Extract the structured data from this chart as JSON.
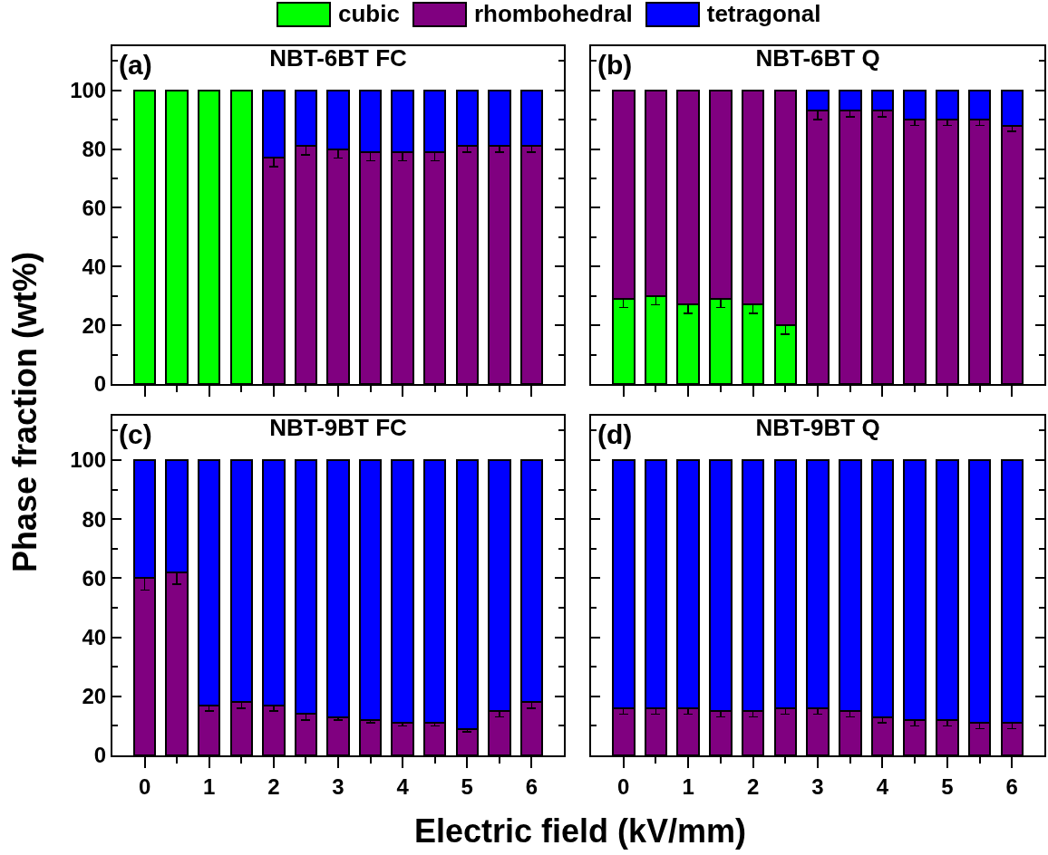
{
  "chart_data": [
    {
      "type": "bar",
      "title": "NBT-6BT FC",
      "ylabel": "Phase fraction (wt%)",
      "annotations": [
        "(a)"
      ],
      "stacked": true,
      "legend": "top",
      "tick_labels": "y",
      "x": [
        0,
        0.5,
        1,
        1.5,
        2,
        2.5,
        3,
        3.5,
        4,
        4.5,
        5,
        5.5,
        6
      ],
      "xlim": [
        -0.5,
        6.5
      ],
      "xticks": [
        0,
        {
          "value": 0.5,
          "label": null
        },
        1,
        {
          "value": 1.5,
          "label": null
        },
        2,
        {
          "value": 2.5,
          "label": null
        },
        3,
        {
          "value": 3.5,
          "label": null
        },
        4,
        {
          "value": 4.5,
          "label": null
        },
        5,
        {
          "value": 5.5,
          "label": null
        },
        6
      ],
      "ylim": [
        0,
        115
      ],
      "yticks": [
        0,
        {
          "value": 10,
          "label": null
        },
        20,
        {
          "value": 30,
          "label": null
        },
        40,
        {
          "value": 50,
          "label": null
        },
        60,
        {
          "value": 70,
          "label": null
        },
        80,
        {
          "value": 90,
          "label": null
        },
        100,
        {
          "value": 110,
          "label": null
        }
      ],
      "series": [
        {
          "name": "cubic",
          "color": "#00ff00",
          "values": [
            100,
            100,
            100,
            100,
            null,
            null,
            null,
            null,
            null,
            null,
            null,
            null,
            null
          ]
        },
        {
          "name": "rhombohedral",
          "color": "#800080",
          "values": [
            null,
            null,
            null,
            null,
            77,
            81,
            80,
            79,
            79,
            79,
            81,
            81,
            81
          ],
          "errors": [
            null,
            null,
            null,
            null,
            3,
            3,
            3,
            3,
            3,
            3,
            2,
            2,
            2
          ]
        },
        {
          "name": "tetragonal",
          "color": "#0000ff",
          "values": [
            null,
            null,
            null,
            null,
            23,
            19,
            20,
            21,
            21,
            21,
            19,
            19,
            19
          ]
        }
      ]
    },
    {
      "type": "bar",
      "title": "NBT-6BT Q",
      "annotations": [
        "(b)"
      ],
      "stacked": true,
      "tick_labels": false,
      "x": [
        0,
        0.5,
        1,
        1.5,
        2,
        2.5,
        3,
        3.5,
        4,
        4.5,
        5,
        5.5,
        6
      ],
      "xlim": [
        -0.5,
        6.5
      ],
      "xticks": [
        0,
        {
          "value": 0.5,
          "label": null
        },
        1,
        {
          "value": 1.5,
          "label": null
        },
        2,
        {
          "value": 2.5,
          "label": null
        },
        3,
        {
          "value": 3.5,
          "label": null
        },
        4,
        {
          "value": 4.5,
          "label": null
        },
        5,
        {
          "value": 5.5,
          "label": null
        },
        6
      ],
      "ylim": [
        0,
        115
      ],
      "yticks": [
        0,
        {
          "value": 10,
          "label": null
        },
        20,
        {
          "value": 30,
          "label": null
        },
        40,
        {
          "value": 50,
          "label": null
        },
        60,
        {
          "value": 70,
          "label": null
        },
        80,
        {
          "value": 90,
          "label": null
        },
        100,
        {
          "value": 110,
          "label": null
        }
      ],
      "series": [
        {
          "color": "#00ff00",
          "values": [
            29,
            30,
            27,
            29,
            27,
            20,
            null,
            null,
            null,
            null,
            null,
            null,
            null
          ],
          "errors": [
            3,
            3,
            3,
            3,
            3,
            3,
            null,
            null,
            null,
            null,
            null,
            null,
            null
          ]
        },
        {
          "color": "#800080",
          "values": [
            71,
            70,
            73,
            71,
            73,
            80,
            93,
            93,
            93,
            90,
            90,
            90,
            88
          ],
          "errors": [
            null,
            null,
            null,
            null,
            null,
            null,
            3,
            2,
            2,
            2,
            2,
            2,
            2
          ]
        },
        {
          "color": "#0000ff",
          "values": [
            null,
            null,
            null,
            null,
            null,
            null,
            7,
            7,
            7,
            10,
            10,
            10,
            12
          ]
        }
      ]
    },
    {
      "type": "bar",
      "title": "NBT-9BT FC",
      "xlabel": "Electric field (kV/mm)",
      "annotations": [
        "(c)"
      ],
      "stacked": true,
      "x": [
        0,
        0.5,
        1,
        1.5,
        2,
        2.5,
        3,
        3.5,
        4,
        4.5,
        5,
        5.5,
        6
      ],
      "xlim": [
        -0.5,
        6.5
      ],
      "xticks": [
        0,
        {
          "value": 0.5,
          "label": null
        },
        1,
        {
          "value": 1.5,
          "label": null
        },
        2,
        {
          "value": 2.5,
          "label": null
        },
        3,
        {
          "value": 3.5,
          "label": null
        },
        4,
        {
          "value": 4.5,
          "label": null
        },
        5,
        {
          "value": 5.5,
          "label": null
        },
        6
      ],
      "ylim": [
        0,
        115
      ],
      "yticks": [
        0,
        {
          "value": 10,
          "label": null
        },
        20,
        {
          "value": 30,
          "label": null
        },
        40,
        {
          "value": 50,
          "label": null
        },
        60,
        {
          "value": 70,
          "label": null
        },
        80,
        {
          "value": 90,
          "label": null
        },
        100,
        {
          "value": 110,
          "label": null
        }
      ],
      "series": [
        {
          "color": "#800080",
          "values": [
            60,
            62,
            17,
            18,
            17,
            14,
            13,
            12,
            11,
            11,
            9,
            15,
            18
          ],
          "errors": [
            4,
            4,
            2,
            2,
            2,
            2,
            1,
            1,
            1,
            1,
            1,
            2,
            2
          ]
        },
        {
          "color": "#0000ff",
          "values": [
            40,
            38,
            83,
            82,
            83,
            86,
            87,
            88,
            89,
            89,
            91,
            85,
            82
          ]
        }
      ]
    },
    {
      "type": "bar",
      "title": "NBT-9BT Q",
      "annotations": [
        "(d)"
      ],
      "stacked": true,
      "tick_labels": "x",
      "x": [
        0,
        0.5,
        1,
        1.5,
        2,
        2.5,
        3,
        3.5,
        4,
        4.5,
        5,
        5.5,
        6
      ],
      "xlim": [
        -0.5,
        6.5
      ],
      "xticks": [
        0,
        {
          "value": 0.5,
          "label": null
        },
        1,
        {
          "value": 1.5,
          "label": null
        },
        2,
        {
          "value": 2.5,
          "label": null
        },
        3,
        {
          "value": 3.5,
          "label": null
        },
        4,
        {
          "value": 4.5,
          "label": null
        },
        5,
        {
          "value": 5.5,
          "label": null
        },
        6
      ],
      "ylim": [
        0,
        115
      ],
      "yticks": [
        0,
        {
          "value": 10,
          "label": null
        },
        20,
        {
          "value": 30,
          "label": null
        },
        40,
        {
          "value": 50,
          "label": null
        },
        60,
        {
          "value": 70,
          "label": null
        },
        80,
        {
          "value": 90,
          "label": null
        },
        100,
        {
          "value": 110,
          "label": null
        }
      ],
      "series": [
        {
          "color": "#800080",
          "values": [
            16,
            16,
            16,
            15,
            15,
            16,
            16,
            15,
            13,
            12,
            12,
            11,
            11
          ],
          "errors": [
            2,
            2,
            2,
            2,
            2,
            2,
            2,
            2,
            2,
            2,
            2,
            2,
            2
          ]
        },
        {
          "color": "#0000ff",
          "values": [
            84,
            84,
            84,
            85,
            85,
            84,
            84,
            85,
            87,
            88,
            88,
            89,
            89
          ]
        }
      ]
    }
  ]
}
